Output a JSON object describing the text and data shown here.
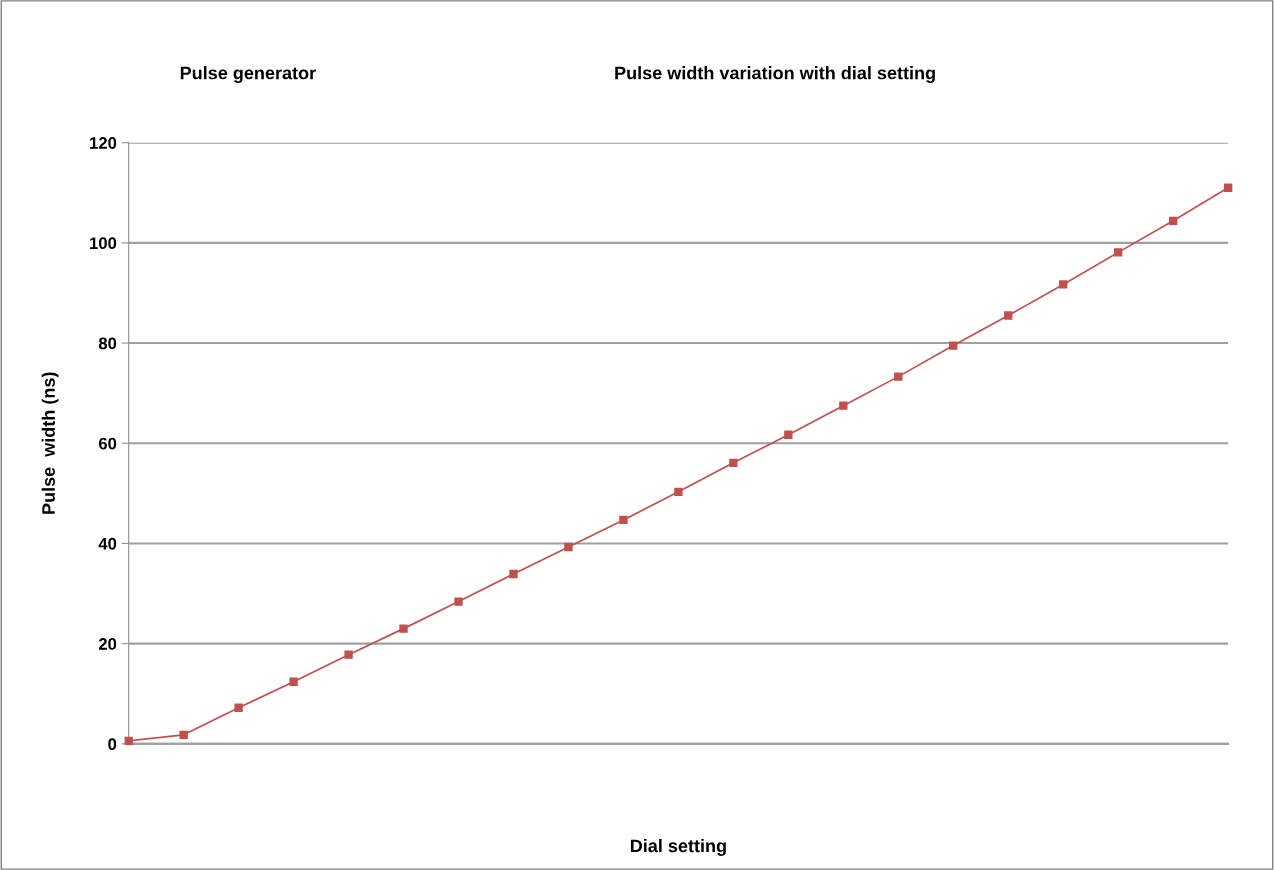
{
  "chart_data": {
    "type": "line",
    "title": "Pulse width variation with dial setting",
    "subtitle": "Pulse generator",
    "xlabel": "Dial setting",
    "ylabel": "Pulse  width (ns)",
    "categories": [
      null,
      null,
      null,
      null,
      null,
      null,
      null,
      null,
      null,
      null,
      null,
      null,
      null,
      null,
      null,
      null,
      null,
      null,
      null,
      null,
      null
    ],
    "series": [
      {
        "color": "#c0504d",
        "values": [
          0.6,
          1.8,
          7.2,
          12.4,
          17.8,
          23.0,
          28.4,
          33.9,
          39.3,
          44.7,
          50.3,
          56.1,
          61.7,
          67.5,
          73.3,
          79.5,
          85.5,
          91.7,
          98.1,
          104.4,
          111.0
        ]
      }
    ],
    "ylim": [
      0,
      120
    ],
    "yticks": [
      0,
      20,
      40,
      60,
      80,
      100,
      120
    ],
    "grid": "y",
    "marker": "square",
    "line_style": "solid"
  }
}
